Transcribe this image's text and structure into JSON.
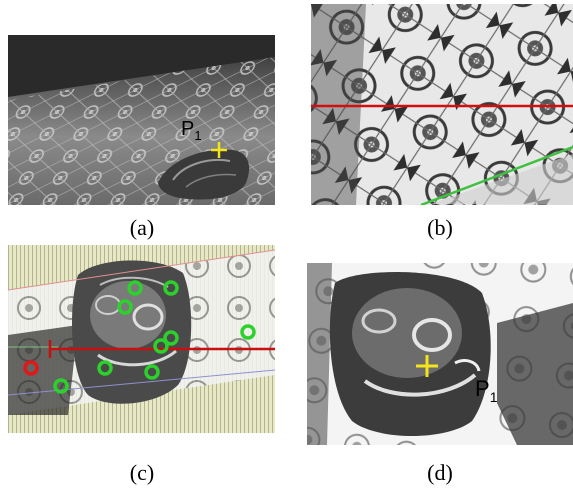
{
  "figure": {
    "panels": [
      {
        "id": "a",
        "caption": "(a)",
        "point_label": "P",
        "point_subscript": "1"
      },
      {
        "id": "b",
        "caption": "(b)"
      },
      {
        "id": "c",
        "caption": "(c)"
      },
      {
        "id": "d",
        "caption": "(d)",
        "point_label": "P",
        "point_subscript": "1"
      }
    ],
    "colors": {
      "marker_cross": "#f4e41c",
      "epipolar_line": "#d01010",
      "guide_line": "#40c040",
      "circle_green": "#2cd12c",
      "circle_red": "#e01818"
    }
  }
}
